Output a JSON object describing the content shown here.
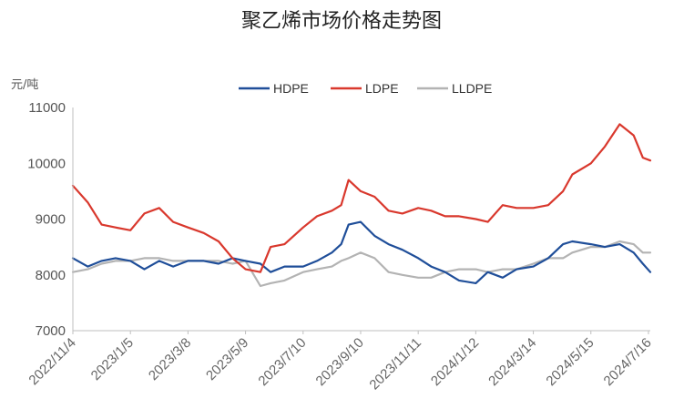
{
  "chart_data": {
    "type": "line",
    "title": "聚乙烯市场价格走势图",
    "ylabel": "元/吨",
    "ylim": [
      7000,
      11000
    ],
    "y_ticks": [
      "11000",
      "10000",
      "9000",
      "8000",
      "7000"
    ],
    "x_range": [
      "2022-11-04",
      "2024-07-18"
    ],
    "x_ticks": [
      {
        "label": "2022/11/4",
        "date": "2022-11-04"
      },
      {
        "label": "2023/1/5",
        "date": "2023-01-05"
      },
      {
        "label": "2023/3/8",
        "date": "2023-03-08"
      },
      {
        "label": "2023/5/9",
        "date": "2023-05-09"
      },
      {
        "label": "2023/7/10",
        "date": "2023-07-10"
      },
      {
        "label": "2023/9/10",
        "date": "2023-09-10"
      },
      {
        "label": "2023/11/11",
        "date": "2023-11-11"
      },
      {
        "label": "2024/1/12",
        "date": "2024-01-12"
      },
      {
        "label": "2024/3/14",
        "date": "2024-03-14"
      },
      {
        "label": "2024/5/15",
        "date": "2024-05-15"
      },
      {
        "label": "2024/7/16",
        "date": "2024-07-16"
      }
    ],
    "legend_position": "top-center",
    "grid": false,
    "series": [
      {
        "name": "HDPE",
        "color": "#1f4e99",
        "x": [
          "2022-11-04",
          "2022-11-20",
          "2022-12-05",
          "2022-12-20",
          "2023-01-05",
          "2023-01-20",
          "2023-02-05",
          "2023-02-20",
          "2023-03-08",
          "2023-03-25",
          "2023-04-10",
          "2023-04-25",
          "2023-05-09",
          "2023-05-25",
          "2023-06-05",
          "2023-06-20",
          "2023-07-10",
          "2023-07-25",
          "2023-08-10",
          "2023-08-20",
          "2023-08-28",
          "2023-09-10",
          "2023-09-25",
          "2023-10-10",
          "2023-10-25",
          "2023-11-11",
          "2023-11-25",
          "2023-12-10",
          "2023-12-25",
          "2024-01-12",
          "2024-01-25",
          "2024-02-10",
          "2024-02-25",
          "2024-03-14",
          "2024-03-30",
          "2024-04-15",
          "2024-04-25",
          "2024-05-15",
          "2024-05-30",
          "2024-06-15",
          "2024-06-30",
          "2024-07-10",
          "2024-07-18"
        ],
        "values": [
          8300,
          8150,
          8250,
          8300,
          8250,
          8100,
          8250,
          8150,
          8250,
          8250,
          8200,
          8300,
          8250,
          8200,
          8050,
          8150,
          8150,
          8250,
          8400,
          8550,
          8900,
          8950,
          8700,
          8550,
          8450,
          8300,
          8150,
          8050,
          7900,
          7850,
          8050,
          7950,
          8100,
          8150,
          8300,
          8550,
          8600,
          8550,
          8500,
          8550,
          8400,
          8200,
          8050
        ]
      },
      {
        "name": "LDPE",
        "color": "#d9382d",
        "x": [
          "2022-11-04",
          "2022-11-20",
          "2022-12-05",
          "2022-12-20",
          "2023-01-05",
          "2023-01-20",
          "2023-02-05",
          "2023-02-20",
          "2023-03-08",
          "2023-03-25",
          "2023-04-10",
          "2023-04-25",
          "2023-05-09",
          "2023-05-25",
          "2023-06-05",
          "2023-06-20",
          "2023-07-10",
          "2023-07-25",
          "2023-08-10",
          "2023-08-20",
          "2023-08-28",
          "2023-09-10",
          "2023-09-25",
          "2023-10-10",
          "2023-10-25",
          "2023-11-11",
          "2023-11-25",
          "2023-12-10",
          "2023-12-25",
          "2024-01-12",
          "2024-01-25",
          "2024-02-10",
          "2024-02-25",
          "2024-03-14",
          "2024-03-30",
          "2024-04-15",
          "2024-04-25",
          "2024-05-15",
          "2024-05-30",
          "2024-06-15",
          "2024-06-30",
          "2024-07-10",
          "2024-07-18"
        ],
        "values": [
          9600,
          9300,
          8900,
          8850,
          8800,
          9100,
          9200,
          8950,
          8850,
          8750,
          8600,
          8300,
          8100,
          8050,
          8500,
          8550,
          8850,
          9050,
          9150,
          9250,
          9700,
          9500,
          9400,
          9150,
          9100,
          9200,
          9150,
          9050,
          9050,
          9000,
          8950,
          9250,
          9200,
          9200,
          9250,
          9500,
          9800,
          10000,
          10300,
          10700,
          10500,
          10100,
          10050
        ]
      },
      {
        "name": "LLDPE",
        "color": "#b3b3b3",
        "x": [
          "2022-11-04",
          "2022-11-20",
          "2022-12-05",
          "2022-12-20",
          "2023-01-05",
          "2023-01-20",
          "2023-02-05",
          "2023-02-20",
          "2023-03-08",
          "2023-03-25",
          "2023-04-10",
          "2023-04-25",
          "2023-05-09",
          "2023-05-25",
          "2023-06-05",
          "2023-06-20",
          "2023-07-10",
          "2023-07-25",
          "2023-08-10",
          "2023-08-20",
          "2023-08-28",
          "2023-09-10",
          "2023-09-25",
          "2023-10-10",
          "2023-10-25",
          "2023-11-11",
          "2023-11-25",
          "2023-12-10",
          "2023-12-25",
          "2024-01-12",
          "2024-01-25",
          "2024-02-10",
          "2024-02-25",
          "2024-03-14",
          "2024-03-30",
          "2024-04-15",
          "2024-04-25",
          "2024-05-15",
          "2024-05-30",
          "2024-06-15",
          "2024-06-30",
          "2024-07-10",
          "2024-07-18"
        ],
        "values": [
          8050,
          8100,
          8200,
          8250,
          8250,
          8300,
          8300,
          8250,
          8250,
          8250,
          8250,
          8200,
          8250,
          7800,
          7850,
          7900,
          8050,
          8100,
          8150,
          8250,
          8300,
          8400,
          8300,
          8050,
          8000,
          7950,
          7950,
          8050,
          8100,
          8100,
          8050,
          8100,
          8100,
          8200,
          8300,
          8300,
          8400,
          8500,
          8500,
          8600,
          8550,
          8400,
          8400
        ]
      }
    ]
  }
}
